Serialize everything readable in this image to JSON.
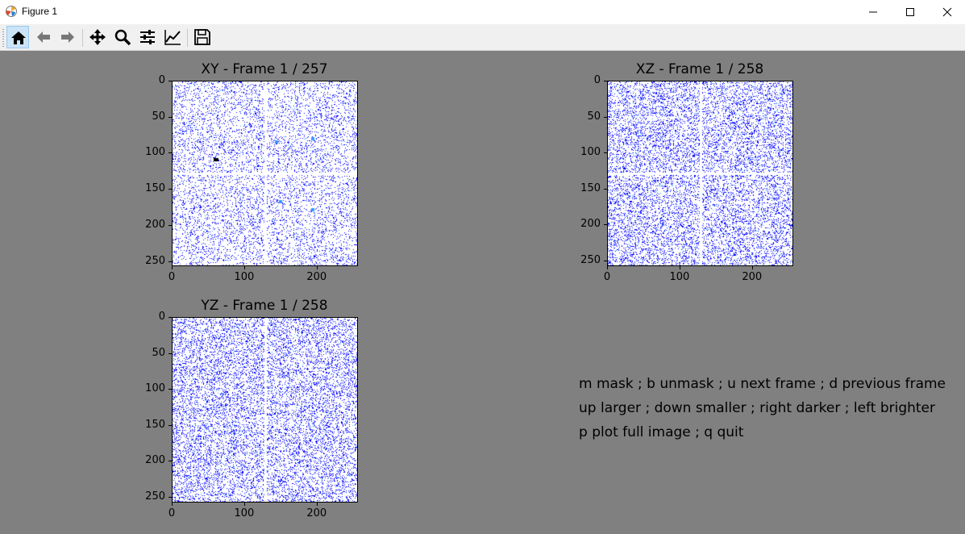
{
  "window": {
    "title": "Figure 1",
    "icons": {
      "app": "matplotlib-icon",
      "minimize": "minimize-icon",
      "maximize": "maximize-icon",
      "close": "close-icon"
    }
  },
  "toolbar": {
    "buttons": [
      {
        "name": "home-button",
        "icon": "home-icon"
      },
      {
        "name": "back-button",
        "icon": "arrow-left-icon"
      },
      {
        "name": "forward-button",
        "icon": "arrow-right-icon"
      },
      {
        "name": "pan-button",
        "icon": "move-icon"
      },
      {
        "name": "zoom-button",
        "icon": "zoom-icon"
      },
      {
        "name": "subplots-button",
        "icon": "sliders-icon"
      },
      {
        "name": "axes-edit-button",
        "icon": "line-chart-icon"
      },
      {
        "name": "save-button",
        "icon": "save-icon"
      }
    ]
  },
  "colors": {
    "figure_bg": "#808080",
    "plot_bg": "#ffffff",
    "points": "#0000ff",
    "highlight": "#3399ff"
  },
  "plots": [
    {
      "id": "xy",
      "title": "XY - Frame 1 / 257",
      "yticks": [
        "0",
        "50",
        "100",
        "150",
        "200",
        "250"
      ],
      "xticks": [
        "0",
        "100",
        "200"
      ],
      "xlim": [
        0,
        257
      ],
      "ylim": [
        257,
        0
      ]
    },
    {
      "id": "xz",
      "title": "XZ - Frame 1 / 258",
      "yticks": [
        "0",
        "50",
        "100",
        "150",
        "200",
        "250"
      ],
      "xticks": [
        "0",
        "100",
        "200"
      ],
      "xlim": [
        0,
        257
      ],
      "ylim": [
        258,
        0
      ]
    },
    {
      "id": "yz",
      "title": "YZ - Frame 1 / 258",
      "yticks": [
        "0",
        "50",
        "100",
        "150",
        "200",
        "250"
      ],
      "xticks": [
        "0",
        "100",
        "200"
      ],
      "xlim": [
        0,
        257
      ],
      "ylim": [
        258,
        0
      ]
    }
  ],
  "help": {
    "line1": "m mask ; b unmask ; u next frame ; d previous frame",
    "line2": "up larger ; down smaller ; right darker ; left brighter",
    "line3": "p plot full image ; q quit"
  }
}
